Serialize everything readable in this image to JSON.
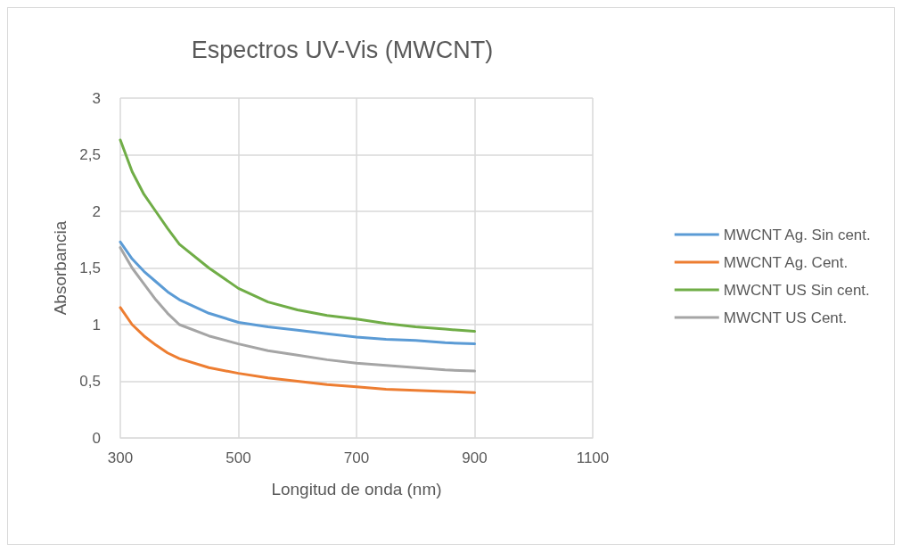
{
  "chart_data": {
    "type": "line",
    "title": "Espectros UV-Vis (MWCNT)",
    "xlabel": "Longitud de onda (nm)",
    "ylabel": "Absorbancia",
    "x": [
      300,
      320,
      340,
      360,
      380,
      400,
      450,
      500,
      550,
      600,
      650,
      700,
      750,
      800,
      850,
      900
    ],
    "series": [
      {
        "name": "MWCNT Ag. Sin cent.",
        "color": "#5b9bd5",
        "values": [
          1.73,
          1.58,
          1.47,
          1.38,
          1.29,
          1.22,
          1.1,
          1.02,
          0.98,
          0.95,
          0.92,
          0.89,
          0.87,
          0.86,
          0.84,
          0.83
        ]
      },
      {
        "name": "MWCNT Ag. Cent.",
        "color": "#ed7d31",
        "values": [
          1.15,
          1.0,
          0.9,
          0.82,
          0.75,
          0.7,
          0.62,
          0.57,
          0.53,
          0.5,
          0.47,
          0.45,
          0.43,
          0.42,
          0.41,
          0.4
        ]
      },
      {
        "name": "MWCNT US Sin cent.",
        "color": "#70ad47",
        "values": [
          2.63,
          2.35,
          2.15,
          2.0,
          1.85,
          1.71,
          1.5,
          1.32,
          1.2,
          1.13,
          1.08,
          1.05,
          1.01,
          0.98,
          0.96,
          0.94
        ]
      },
      {
        "name": "MWCNT US Cent.",
        "color": "#a5a5a5",
        "values": [
          1.68,
          1.5,
          1.36,
          1.22,
          1.1,
          1.0,
          0.9,
          0.83,
          0.77,
          0.73,
          0.69,
          0.66,
          0.64,
          0.62,
          0.6,
          0.59
        ]
      }
    ],
    "xlim": [
      300,
      1100
    ],
    "xticks": [
      300,
      500,
      700,
      900,
      1100
    ],
    "ylim": [
      0,
      3
    ],
    "yticks": [
      0,
      {
        "value": 0.5,
        "label": "0,5"
      },
      1,
      {
        "value": 1.5,
        "label": "1,5"
      },
      2,
      {
        "value": 2.5,
        "label": "2,5"
      },
      3
    ],
    "grid": true,
    "legend": "right",
    "marker": "none",
    "line_style": "solid"
  }
}
